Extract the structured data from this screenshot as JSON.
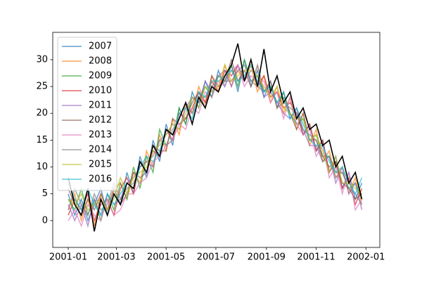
{
  "chart_data": {
    "type": "line",
    "x": [
      0,
      8,
      16,
      24,
      32,
      40,
      48,
      56,
      64,
      72,
      80,
      88,
      96,
      104,
      112,
      120,
      128,
      136,
      144,
      152,
      160,
      168,
      176,
      184,
      192,
      200,
      208,
      216,
      224,
      232,
      240,
      248,
      256,
      264,
      272,
      280,
      288,
      296,
      304,
      312,
      320,
      328,
      336,
      344,
      352,
      360
    ],
    "xlim": [
      -19,
      382
    ],
    "xticks": [
      {
        "value": 0,
        "label": "2001-01"
      },
      {
        "value": 59,
        "label": "2001-03"
      },
      {
        "value": 120,
        "label": "2001-05"
      },
      {
        "value": 181,
        "label": "2001-07"
      },
      {
        "value": 243,
        "label": "2001-09"
      },
      {
        "value": 304,
        "label": "2001-11"
      },
      {
        "value": 365,
        "label": "2002-01"
      }
    ],
    "ylim": [
      -5,
      35.1
    ],
    "yticks": [
      0,
      5,
      10,
      15,
      20,
      25,
      30
    ],
    "legend": "upper left",
    "series": [
      {
        "name": "2007",
        "color": "#1f77b4",
        "values": [
          5,
          1,
          4,
          0,
          3,
          6,
          1,
          5,
          3,
          9,
          5,
          12,
          8,
          15,
          11,
          18,
          14,
          21,
          18,
          24,
          21,
          26,
          23,
          28,
          25,
          29,
          24,
          30,
          25,
          28,
          23,
          26,
          21,
          24,
          19,
          21,
          16,
          18,
          13,
          15,
          9,
          12,
          6,
          9,
          4,
          7
        ]
      },
      {
        "name": "2008",
        "color": "#ff7f0e",
        "values": [
          2,
          5,
          0,
          4,
          -1,
          5,
          2,
          6,
          7,
          4,
          9,
          7,
          13,
          10,
          16,
          13,
          19,
          16,
          22,
          20,
          25,
          22,
          27,
          24,
          29,
          25,
          28,
          26,
          29,
          24,
          27,
          22,
          25,
          20,
          23,
          17,
          20,
          14,
          17,
          11,
          13,
          8,
          10,
          5,
          8,
          3
        ]
      },
      {
        "name": "2009",
        "color": "#2ca02c",
        "values": [
          4,
          2,
          6,
          1,
          4,
          0,
          5,
          2,
          7,
          4,
          10,
          6,
          12,
          9,
          17,
          14,
          15,
          21,
          18,
          23,
          22,
          25,
          23,
          27,
          26,
          29,
          25,
          30,
          26,
          27,
          24,
          25,
          22,
          23,
          20,
          18,
          19,
          15,
          16,
          12,
          12,
          9,
          9,
          6,
          7,
          4
        ]
      },
      {
        "name": "2010",
        "color": "#d62728",
        "values": [
          1,
          4,
          2,
          5,
          0,
          3,
          4,
          1,
          6,
          8,
          5,
          11,
          9,
          13,
          12,
          17,
          15,
          20,
          19,
          21,
          24,
          22,
          26,
          24,
          28,
          27,
          29,
          26,
          30,
          25,
          27,
          23,
          24,
          21,
          22,
          20,
          16,
          18,
          13,
          15,
          9,
          11,
          6,
          8,
          3,
          6
        ]
      },
      {
        "name": "2011",
        "color": "#9467bd",
        "values": [
          3,
          0,
          3,
          -1,
          4,
          1,
          5,
          3,
          4,
          7,
          8,
          10,
          11,
          10,
          15,
          16,
          18,
          17,
          21,
          23,
          22,
          26,
          24,
          27,
          28,
          25,
          29,
          26,
          28,
          27,
          23,
          24,
          22,
          20,
          19,
          21,
          17,
          14,
          14,
          11,
          12,
          7,
          10,
          5,
          7,
          2
        ]
      },
      {
        "name": "2012",
        "color": "#8c564b",
        "values": [
          6,
          3,
          1,
          4,
          2,
          5,
          2,
          6,
          3,
          5,
          9,
          8,
          9,
          14,
          13,
          13,
          19,
          18,
          19,
          22,
          24,
          21,
          27,
          25,
          26,
          30,
          26,
          28,
          25,
          29,
          24,
          26,
          21,
          24,
          20,
          17,
          20,
          15,
          15,
          12,
          10,
          11,
          7,
          6,
          4,
          5
        ]
      },
      {
        "name": "2013",
        "color": "#e377c2",
        "values": [
          0,
          2,
          -1,
          3,
          1,
          0,
          4,
          1,
          2,
          5,
          5,
          7,
          8,
          11,
          12,
          14,
          15,
          18,
          17,
          21,
          20,
          24,
          23,
          26,
          25,
          28,
          29,
          25,
          27,
          26,
          26,
          22,
          24,
          19,
          23,
          18,
          16,
          17,
          12,
          14,
          8,
          10,
          5,
          9,
          2,
          4
        ]
      },
      {
        "name": "2014",
        "color": "#7f7f7f",
        "values": [
          2,
          6,
          3,
          1,
          5,
          2,
          3,
          7,
          4,
          6,
          7,
          10,
          11,
          12,
          15,
          14,
          17,
          19,
          22,
          20,
          23,
          23,
          25,
          27,
          26,
          26,
          28,
          29,
          26,
          25,
          24,
          26,
          21,
          22,
          21,
          20,
          17,
          16,
          15,
          11,
          12,
          8,
          9,
          6,
          5,
          3
        ]
      },
      {
        "name": "2015",
        "color": "#bcbd22",
        "values": [
          4,
          3,
          5,
          2,
          3,
          4,
          2,
          4,
          8,
          5,
          8,
          9,
          10,
          13,
          14,
          16,
          18,
          17,
          20,
          23,
          21,
          25,
          24,
          25,
          29,
          26,
          27,
          28,
          28,
          27,
          25,
          23,
          25,
          21,
          20,
          19,
          19,
          15,
          16,
          13,
          9,
          12,
          7,
          7,
          6,
          5
        ]
      },
      {
        "name": "2016",
        "color": "#17becf",
        "values": [
          7,
          4,
          2,
          6,
          3,
          1,
          5,
          3,
          5,
          7,
          6,
          10,
          12,
          11,
          13,
          17,
          16,
          20,
          21,
          19,
          24,
          23,
          26,
          26,
          27,
          28,
          26,
          27,
          29,
          26,
          24,
          25,
          22,
          24,
          19,
          21,
          18,
          15,
          14,
          14,
          11,
          9,
          10,
          7,
          5,
          8
        ]
      },
      {
        "color": "#000000",
        "values": [
          8,
          3,
          1,
          6,
          -2,
          4,
          1,
          5,
          3,
          7,
          6,
          11,
          9,
          14,
          12,
          17,
          16,
          19,
          22,
          18,
          23,
          21,
          25,
          24,
          27,
          29,
          33,
          26,
          30,
          25,
          32,
          24,
          27,
          22,
          24,
          19,
          21,
          17,
          18,
          14,
          15,
          10,
          12,
          7,
          9,
          4
        ]
      }
    ]
  }
}
